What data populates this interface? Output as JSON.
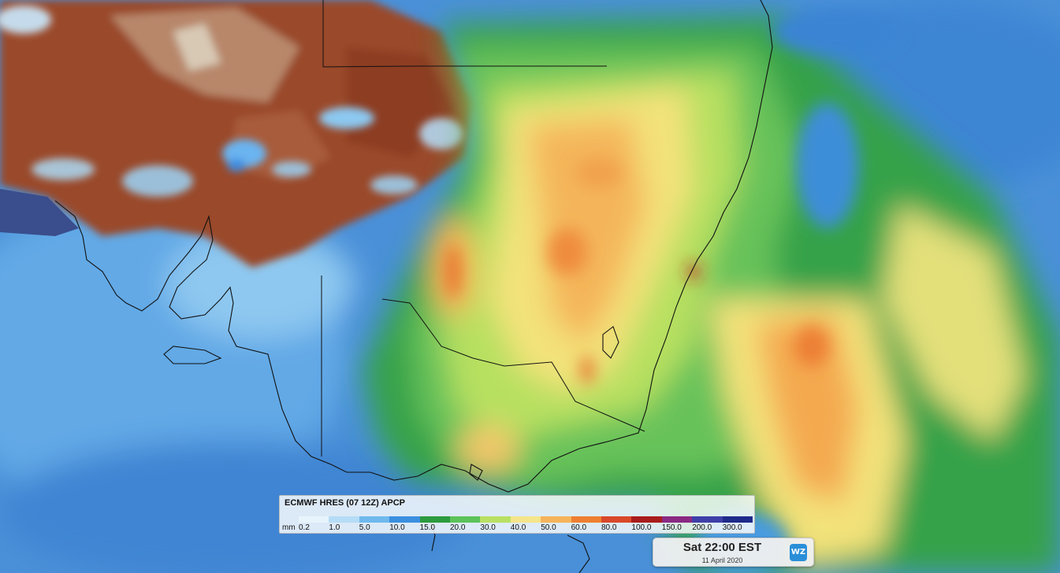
{
  "legend": {
    "title": "ECMWF HRES (07 12Z) APCP",
    "unit": "mm",
    "ticks": [
      "0.2",
      "1.0",
      "5.0",
      "10.0",
      "15.0",
      "20.0",
      "30.0",
      "40.0",
      "50.0",
      "60.0",
      "80.0",
      "100.0",
      "150.0",
      "200.0",
      "300.0"
    ],
    "colors": [
      "#e8f4fb",
      "#b5dcf6",
      "#6fb9ee",
      "#3a8fe0",
      "#2c9a3f",
      "#5cc25a",
      "#b9e063",
      "#f5e58a",
      "#f5b35a",
      "#ee7f32",
      "#d9482a",
      "#a91c1c",
      "#8b2a83",
      "#3f3fa8",
      "#1e2a8a"
    ]
  },
  "timestamp": {
    "main": "Sat 22:00 EST",
    "date": "11 April 2020"
  },
  "logo": {
    "text": "WZ"
  }
}
